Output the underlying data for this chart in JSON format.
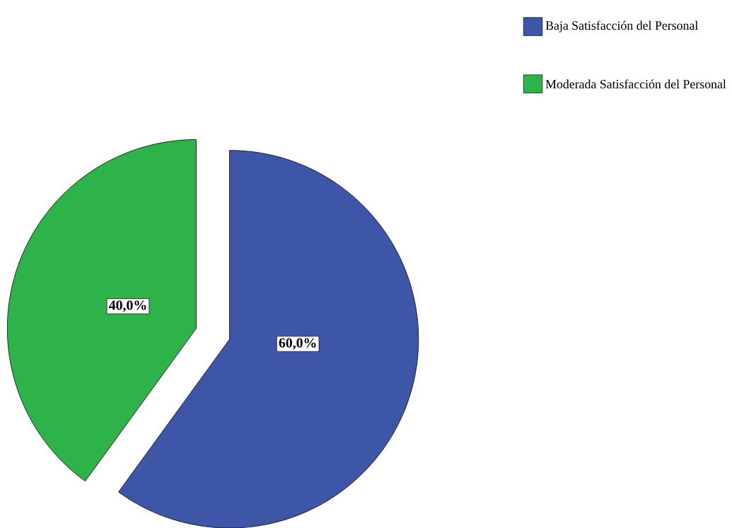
{
  "chart_data": {
    "type": "pie",
    "categories": [
      "Baja Satisfacción del Personal",
      "Moderada Satisfacción del Personal"
    ],
    "values": [
      60,
      40
    ],
    "colors": [
      "#3d56a8",
      "#2eb34b"
    ],
    "value_labels": [
      "60,0%",
      "40,0%"
    ],
    "legend": "top right"
  }
}
